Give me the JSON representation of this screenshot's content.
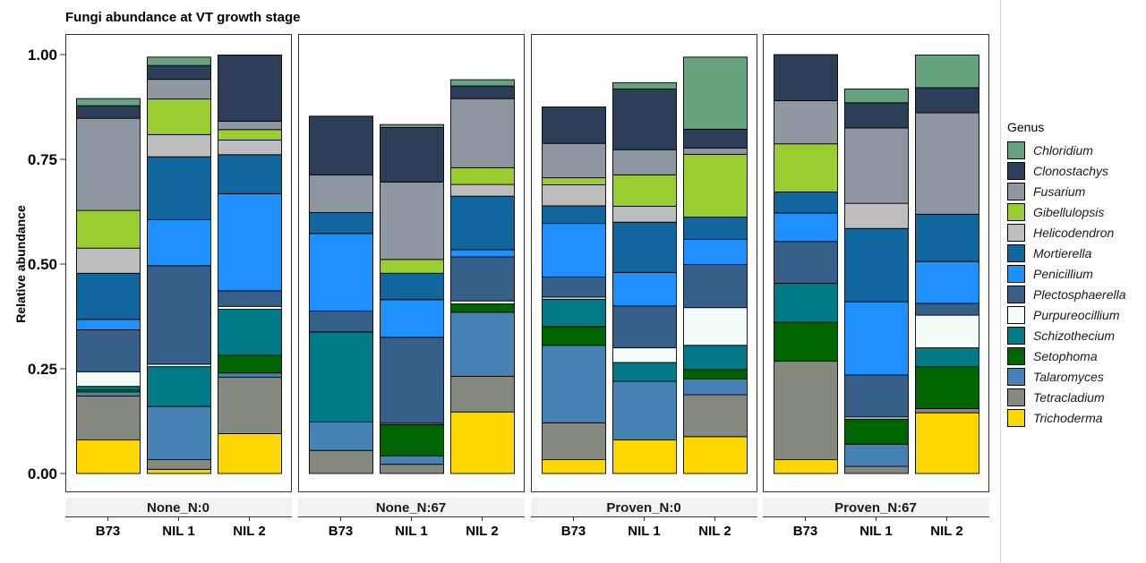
{
  "chart_data": {
    "type": "bar",
    "stacked": true,
    "title": "Fungi abundance at VT growth stage",
    "ylabel": "Relative abundance",
    "xlabel": "",
    "ylim": [
      0,
      1
    ],
    "yticks": [
      "0.00",
      "0.25",
      "0.50",
      "0.75",
      "1.00"
    ],
    "legend": {
      "title": "Genus",
      "placement": "right"
    },
    "genera": [
      {
        "name": "Chloridium",
        "color": "#67A37E"
      },
      {
        "name": "Clonostachys",
        "color": "#2C3E58"
      },
      {
        "name": "Fusarium",
        "color": "#8E96A0"
      },
      {
        "name": "Gibellulopsis",
        "color": "#9ACD32"
      },
      {
        "name": "Helicodendron",
        "color": "#BEBEBE"
      },
      {
        "name": "Mortierella",
        "color": "#10669D"
      },
      {
        "name": "Penicillium",
        "color": "#1E90FF"
      },
      {
        "name": "Plectosphaerella",
        "color": "#36608A"
      },
      {
        "name": "Purpureocillium",
        "color": "#F3FCF8"
      },
      {
        "name": "Schizothecium",
        "color": "#007A87"
      },
      {
        "name": "Setophoma",
        "color": "#006400"
      },
      {
        "name": "Talaromyces",
        "color": "#4682B4"
      },
      {
        "name": "Tetracladium",
        "color": "#848A80"
      },
      {
        "name": "Trichoderma",
        "color": "#FFD700"
      }
    ],
    "facets": [
      {
        "label": "None_N:0",
        "bars": [
          {
            "category": "B73",
            "values": [
              0.017,
              0.03,
              0.22,
              0.09,
              0.06,
              0.11,
              0.025,
              0.1,
              0.035,
              0.008,
              0.005,
              0.01,
              0.105,
              0.08
            ]
          },
          {
            "category": "NIL 1",
            "values": [
              0.02,
              0.033,
              0.047,
              0.085,
              0.053,
              0.15,
              0.11,
              0.235,
              0.006,
              0.095,
              0.0,
              0.127,
              0.023,
              0.01
            ]
          },
          {
            "category": "NIL 2",
            "values": [
              0.0,
              0.158,
              0.02,
              0.025,
              0.035,
              0.093,
              0.232,
              0.037,
              0.007,
              0.11,
              0.042,
              0.01,
              0.135,
              0.095
            ]
          }
        ]
      },
      {
        "label": "None_N:67",
        "bars": [
          {
            "category": "B73",
            "values": [
              0.0,
              0.14,
              0.09,
              0.0,
              0.0,
              0.05,
              0.185,
              0.05,
              0.0,
              0.215,
              0.0,
              0.068,
              0.055,
              0.0
            ]
          },
          {
            "category": "NIL 1",
            "values": [
              0.007,
              0.13,
              0.185,
              0.033,
              0.0,
              0.063,
              0.09,
              0.205,
              0.003,
              0.0,
              0.075,
              0.02,
              0.022,
              0.0
            ]
          },
          {
            "category": "NIL 2",
            "values": [
              0.015,
              0.03,
              0.165,
              0.04,
              0.028,
              0.128,
              0.017,
              0.105,
              0.007,
              0.0,
              0.02,
              0.153,
              0.085,
              0.147
            ]
          }
        ]
      },
      {
        "label": "Proven_N:0",
        "bars": [
          {
            "category": "B73",
            "values": [
              0.0,
              0.087,
              0.082,
              0.017,
              0.05,
              0.042,
              0.128,
              0.048,
              0.005,
              0.065,
              0.045,
              0.185,
              0.088,
              0.033
            ]
          },
          {
            "category": "NIL 1",
            "values": [
              0.015,
              0.145,
              0.06,
              0.075,
              0.038,
              0.12,
              0.08,
              0.1,
              0.035,
              0.045,
              0.0,
              0.14,
              0.0,
              0.08
            ]
          },
          {
            "category": "NIL 2",
            "values": [
              0.172,
              0.045,
              0.015,
              0.15,
              0.0,
              0.053,
              0.06,
              0.103,
              0.09,
              0.058,
              0.022,
              0.038,
              0.1,
              0.088
            ]
          }
        ]
      },
      {
        "label": "Proven_N:67",
        "bars": [
          {
            "category": "B73",
            "values": [
              0.0,
              0.11,
              0.103,
              0.115,
              0.0,
              0.05,
              0.068,
              0.1,
              0.0,
              0.093,
              0.093,
              0.0,
              0.235,
              0.033
            ]
          },
          {
            "category": "NIL 1",
            "values": [
              0.033,
              0.06,
              0.18,
              0.0,
              0.06,
              0.175,
              0.175,
              0.1,
              0.005,
              0.0,
              0.06,
              0.053,
              0.017,
              0.0
            ]
          },
          {
            "category": "NIL 2",
            "values": [
              0.078,
              0.06,
              0.242,
              0.0,
              0.0,
              0.113,
              0.1,
              0.028,
              0.078,
              0.045,
              0.1,
              0.0,
              0.01,
              0.145
            ]
          }
        ]
      }
    ]
  }
}
